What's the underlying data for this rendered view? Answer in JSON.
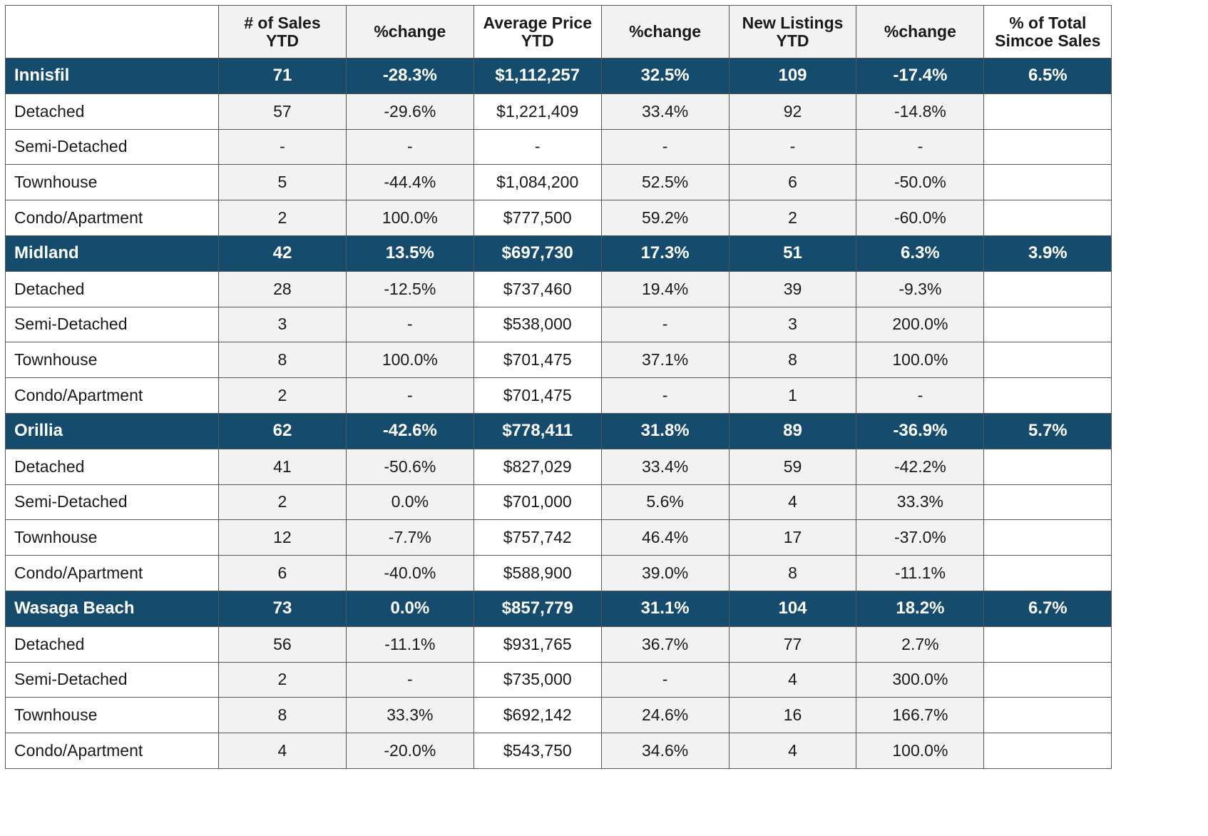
{
  "colors": {
    "group_header_bg": "#154c6e",
    "group_header_text": "#ffffff",
    "alt_column_bg": "#f2f2f2",
    "border": "#555555"
  },
  "columns": [
    {
      "lines": [
        "# of Sales",
        "YTD"
      ]
    },
    {
      "lines": [
        "%change"
      ]
    },
    {
      "lines": [
        "Average Price",
        "YTD"
      ]
    },
    {
      "lines": [
        "%change"
      ]
    },
    {
      "lines": [
        "New Listings",
        "YTD"
      ]
    },
    {
      "lines": [
        "%change"
      ]
    },
    {
      "lines": [
        "% of Total",
        "Simcoe Sales"
      ]
    }
  ],
  "groups": [
    {
      "name": "Innisfil",
      "totals": [
        "71",
        "-28.3%",
        "$1,112,257",
        "32.5%",
        "109",
        "-17.4%",
        "6.5%"
      ],
      "rows": [
        {
          "type": "Detached",
          "values": [
            "57",
            "-29.6%",
            "$1,221,409",
            "33.4%",
            "92",
            "-14.8%",
            ""
          ]
        },
        {
          "type": "Semi-Detached",
          "values": [
            "-",
            "-",
            "-",
            "-",
            "-",
            "-",
            ""
          ]
        },
        {
          "type": "Townhouse",
          "values": [
            "5",
            "-44.4%",
            "$1,084,200",
            "52.5%",
            "6",
            "-50.0%",
            ""
          ]
        },
        {
          "type": "Condo/Apartment",
          "values": [
            "2",
            "100.0%",
            "$777,500",
            "59.2%",
            "2",
            "-60.0%",
            ""
          ]
        }
      ]
    },
    {
      "name": "Midland",
      "totals": [
        "42",
        "13.5%",
        "$697,730",
        "17.3%",
        "51",
        "6.3%",
        "3.9%"
      ],
      "rows": [
        {
          "type": "Detached",
          "values": [
            "28",
            "-12.5%",
            "$737,460",
            "19.4%",
            "39",
            "-9.3%",
            ""
          ]
        },
        {
          "type": "Semi-Detached",
          "values": [
            "3",
            "-",
            "$538,000",
            "-",
            "3",
            "200.0%",
            ""
          ]
        },
        {
          "type": "Townhouse",
          "values": [
            "8",
            "100.0%",
            "$701,475",
            "37.1%",
            "8",
            "100.0%",
            ""
          ]
        },
        {
          "type": "Condo/Apartment",
          "values": [
            "2",
            "-",
            "$701,475",
            "-",
            "1",
            "-",
            ""
          ]
        }
      ]
    },
    {
      "name": "Orillia",
      "totals": [
        "62",
        "-42.6%",
        "$778,411",
        "31.8%",
        "89",
        "-36.9%",
        "5.7%"
      ],
      "rows": [
        {
          "type": "Detached",
          "values": [
            "41",
            "-50.6%",
            "$827,029",
            "33.4%",
            "59",
            "-42.2%",
            ""
          ]
        },
        {
          "type": "Semi-Detached",
          "values": [
            "2",
            "0.0%",
            "$701,000",
            "5.6%",
            "4",
            "33.3%",
            ""
          ]
        },
        {
          "type": "Townhouse",
          "values": [
            "12",
            "-7.7%",
            "$757,742",
            "46.4%",
            "17",
            "-37.0%",
            ""
          ]
        },
        {
          "type": "Condo/Apartment",
          "values": [
            "6",
            "-40.0%",
            "$588,900",
            "39.0%",
            "8",
            "-11.1%",
            ""
          ]
        }
      ]
    },
    {
      "name": "Wasaga Beach",
      "totals": [
        "73",
        "0.0%",
        "$857,779",
        "31.1%",
        "104",
        "18.2%",
        "6.7%"
      ],
      "rows": [
        {
          "type": "Detached",
          "values": [
            "56",
            "-11.1%",
            "$931,765",
            "36.7%",
            "77",
            "2.7%",
            ""
          ]
        },
        {
          "type": "Semi-Detached",
          "values": [
            "2",
            "-",
            "$735,000",
            "-",
            "4",
            "300.0%",
            ""
          ]
        },
        {
          "type": "Townhouse",
          "values": [
            "8",
            "33.3%",
            "$692,142",
            "24.6%",
            "16",
            "166.7%",
            ""
          ]
        },
        {
          "type": "Condo/Apartment",
          "values": [
            "4",
            "-20.0%",
            "$543,750",
            "34.6%",
            "4",
            "100.0%",
            ""
          ]
        }
      ]
    }
  ]
}
